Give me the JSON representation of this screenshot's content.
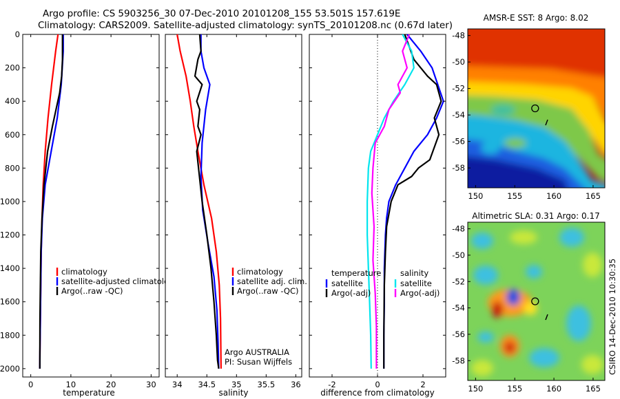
{
  "title": {
    "line1": "Argo profile: CS 5903256_30 07-Dec-2010 20101208_155 53.501S 157.619E",
    "line2": "Climatology: CARS2009. Satellite-adjusted climatology: synTS_20101208.nc (0.67d later)"
  },
  "colors": {
    "climatology": "#ff0000",
    "satellite": "#0000ff",
    "argo": "#000000",
    "salinity_satellite": "#00e5ee",
    "salinity_argo": "#ff00ff"
  },
  "chart_data": [
    {
      "id": "temperature",
      "type": "line",
      "xlabel": "temperature",
      "xlim": [
        -2,
        32
      ],
      "xticks": [
        0,
        10,
        20,
        30
      ],
      "ylim": [
        0,
        2050
      ],
      "yreversed": true,
      "yticks": [
        0,
        200,
        400,
        600,
        800,
        1000,
        1200,
        1400,
        1600,
        1800,
        2000
      ],
      "series": [
        {
          "name": "climatology",
          "color": "#ff0000",
          "x": [
            6.8,
            6.2,
            5.2,
            4.3,
            3.6,
            3.1,
            2.8,
            2.6,
            2.5,
            2.4,
            2.3,
            2.25
          ],
          "y": [
            0,
            100,
            300,
            500,
            700,
            900,
            1100,
            1300,
            1500,
            1700,
            1900,
            2000
          ]
        },
        {
          "name": "satellite-adjusted climatology",
          "color": "#0000ff",
          "x": [
            8.1,
            8.1,
            7.6,
            6.6,
            5.1,
            3.6,
            2.9,
            2.6,
            2.5,
            2.4,
            2.3,
            2.25
          ],
          "y": [
            0,
            100,
            300,
            500,
            700,
            900,
            1100,
            1300,
            1500,
            1700,
            1900,
            2000
          ]
        },
        {
          "name": "Argo(..raw -QC)",
          "color": "#000000",
          "x": [
            7.9,
            7.9,
            7.7,
            7.2,
            6.3,
            5.4,
            4.2,
            3.3,
            2.8,
            2.5,
            2.4,
            2.3,
            2.25
          ],
          "y": [
            0,
            150,
            250,
            350,
            450,
            550,
            700,
            900,
            1100,
            1300,
            1500,
            1700,
            2000
          ]
        }
      ],
      "legend": [
        "climatology",
        "satellite-adjusted climatology",
        "Argo(..raw -QC)"
      ]
    },
    {
      "id": "salinity",
      "type": "line",
      "xlabel": "salinity",
      "xlim": [
        33.8,
        36.1
      ],
      "xticks": [
        34,
        34.5,
        35,
        35.5,
        36
      ],
      "ylim": [
        0,
        2050
      ],
      "yreversed": true,
      "series": [
        {
          "name": "climatology",
          "color": "#ff0000",
          "x": [
            34.0,
            34.05,
            34.15,
            34.22,
            34.28,
            34.35,
            34.45,
            34.58,
            34.66,
            34.71,
            34.73,
            34.74
          ],
          "y": [
            0,
            100,
            250,
            400,
            550,
            700,
            900,
            1100,
            1300,
            1500,
            1700,
            2000
          ]
        },
        {
          "name": "satellite adj. clim.",
          "color": "#0000ff",
          "x": [
            34.4,
            34.4,
            34.45,
            34.55,
            34.48,
            34.42,
            34.4,
            34.43,
            34.52,
            34.62,
            34.67,
            34.69,
            34.7
          ],
          "y": [
            0,
            100,
            200,
            300,
            450,
            650,
            850,
            1050,
            1250,
            1450,
            1650,
            1850,
            2000
          ]
        },
        {
          "name": "Argo(..raw -QC)",
          "color": "#000000",
          "x": [
            34.38,
            34.4,
            34.35,
            34.3,
            34.42,
            34.33,
            34.38,
            34.35,
            34.4,
            34.33,
            34.36,
            34.42,
            34.5,
            34.57,
            34.62,
            34.66,
            34.68,
            34.7
          ],
          "y": [
            0,
            100,
            150,
            250,
            300,
            400,
            450,
            550,
            600,
            700,
            800,
            1000,
            1200,
            1400,
            1600,
            1800,
            1950,
            2000
          ]
        }
      ],
      "legend": [
        "climatology",
        "satellite adj. clim.",
        "Argo(..raw -QC)"
      ],
      "annotation": [
        "Argo AUSTRALIA",
        "PI: Susan Wijffels"
      ]
    },
    {
      "id": "difference",
      "type": "line",
      "xlabel": "difference from climatology",
      "xlim": [
        -3,
        3
      ],
      "xticks": [
        -2,
        0,
        2
      ],
      "ylim": [
        0,
        2050
      ],
      "yreversed": true,
      "series": [
        {
          "name": "temperature satellite",
          "color": "#0000ff",
          "x": [
            1.3,
            1.9,
            2.4,
            2.9,
            2.6,
            2.2,
            1.6,
            1.2,
            0.8,
            0.5,
            0.4,
            0.35,
            0.3,
            0.3,
            0.28,
            0.28
          ],
          "y": [
            0,
            100,
            200,
            400,
            500,
            600,
            700,
            800,
            900,
            1000,
            1100,
            1200,
            1400,
            1600,
            1800,
            2000
          ]
        },
        {
          "name": "temperature Argo(-adj)",
          "color": "#000000",
          "x": [
            1.2,
            1.6,
            2.2,
            2.6,
            2.8,
            2.5,
            2.7,
            2.3,
            1.8,
            1.5,
            0.9,
            0.6,
            0.4,
            0.35,
            0.3,
            0.28,
            0.28
          ],
          "y": [
            0,
            150,
            250,
            300,
            400,
            500,
            600,
            750,
            800,
            850,
            900,
            1000,
            1150,
            1300,
            1500,
            1800,
            2000
          ]
        },
        {
          "name": "salinity satellite",
          "color": "#00e5ee",
          "x": [
            1.1,
            1.5,
            1.6,
            1.2,
            0.7,
            0.3,
            0.0,
            -0.3,
            -0.4,
            -0.45,
            -0.45,
            -0.4,
            -0.35,
            -0.3,
            -0.28
          ],
          "y": [
            0,
            100,
            200,
            300,
            400,
            500,
            600,
            700,
            800,
            1000,
            1200,
            1400,
            1600,
            1800,
            2000
          ]
        },
        {
          "name": "salinity Argo(-adj)",
          "color": "#ff00ff",
          "x": [
            1.4,
            1.1,
            1.3,
            0.9,
            1.0,
            0.5,
            0.3,
            -0.1,
            -0.2,
            -0.25,
            -0.15,
            -0.2,
            -0.1,
            -0.05,
            -0.05
          ],
          "y": [
            0,
            100,
            200,
            300,
            350,
            450,
            550,
            650,
            800,
            950,
            1150,
            1350,
            1550,
            1750,
            2000
          ]
        }
      ],
      "legend_headers": [
        "temperature",
        "salinity"
      ],
      "legend": [
        "satellite",
        "Argo(-adj)",
        "satellite",
        "Argo(-adj)"
      ]
    },
    {
      "id": "sst_map",
      "type": "heatmap",
      "title": "AMSR-E SST: 8 Argo: 8.02",
      "xlim": [
        149,
        166.5
      ],
      "ylim": [
        -59.5,
        -47.5
      ],
      "xticks": [
        150,
        155,
        160,
        165
      ],
      "yticks": [
        -48,
        -50,
        -52,
        -54,
        -56,
        -58
      ],
      "marker": {
        "lon": 157.6,
        "lat": -53.5
      }
    },
    {
      "id": "sla_map",
      "type": "heatmap",
      "title": "Altimetric SLA: 0.31 Argo: 0.17",
      "xlim": [
        149,
        166.5
      ],
      "ylim": [
        -59.5,
        -47.5
      ],
      "xticks": [
        150,
        155,
        160,
        165
      ],
      "yticks": [
        -48,
        -50,
        -52,
        -54,
        -56,
        -58
      ],
      "marker": {
        "lon": 157.6,
        "lat": -53.5
      }
    }
  ],
  "stamp": "CSIRO 14-Dec-2010 10:30:35"
}
